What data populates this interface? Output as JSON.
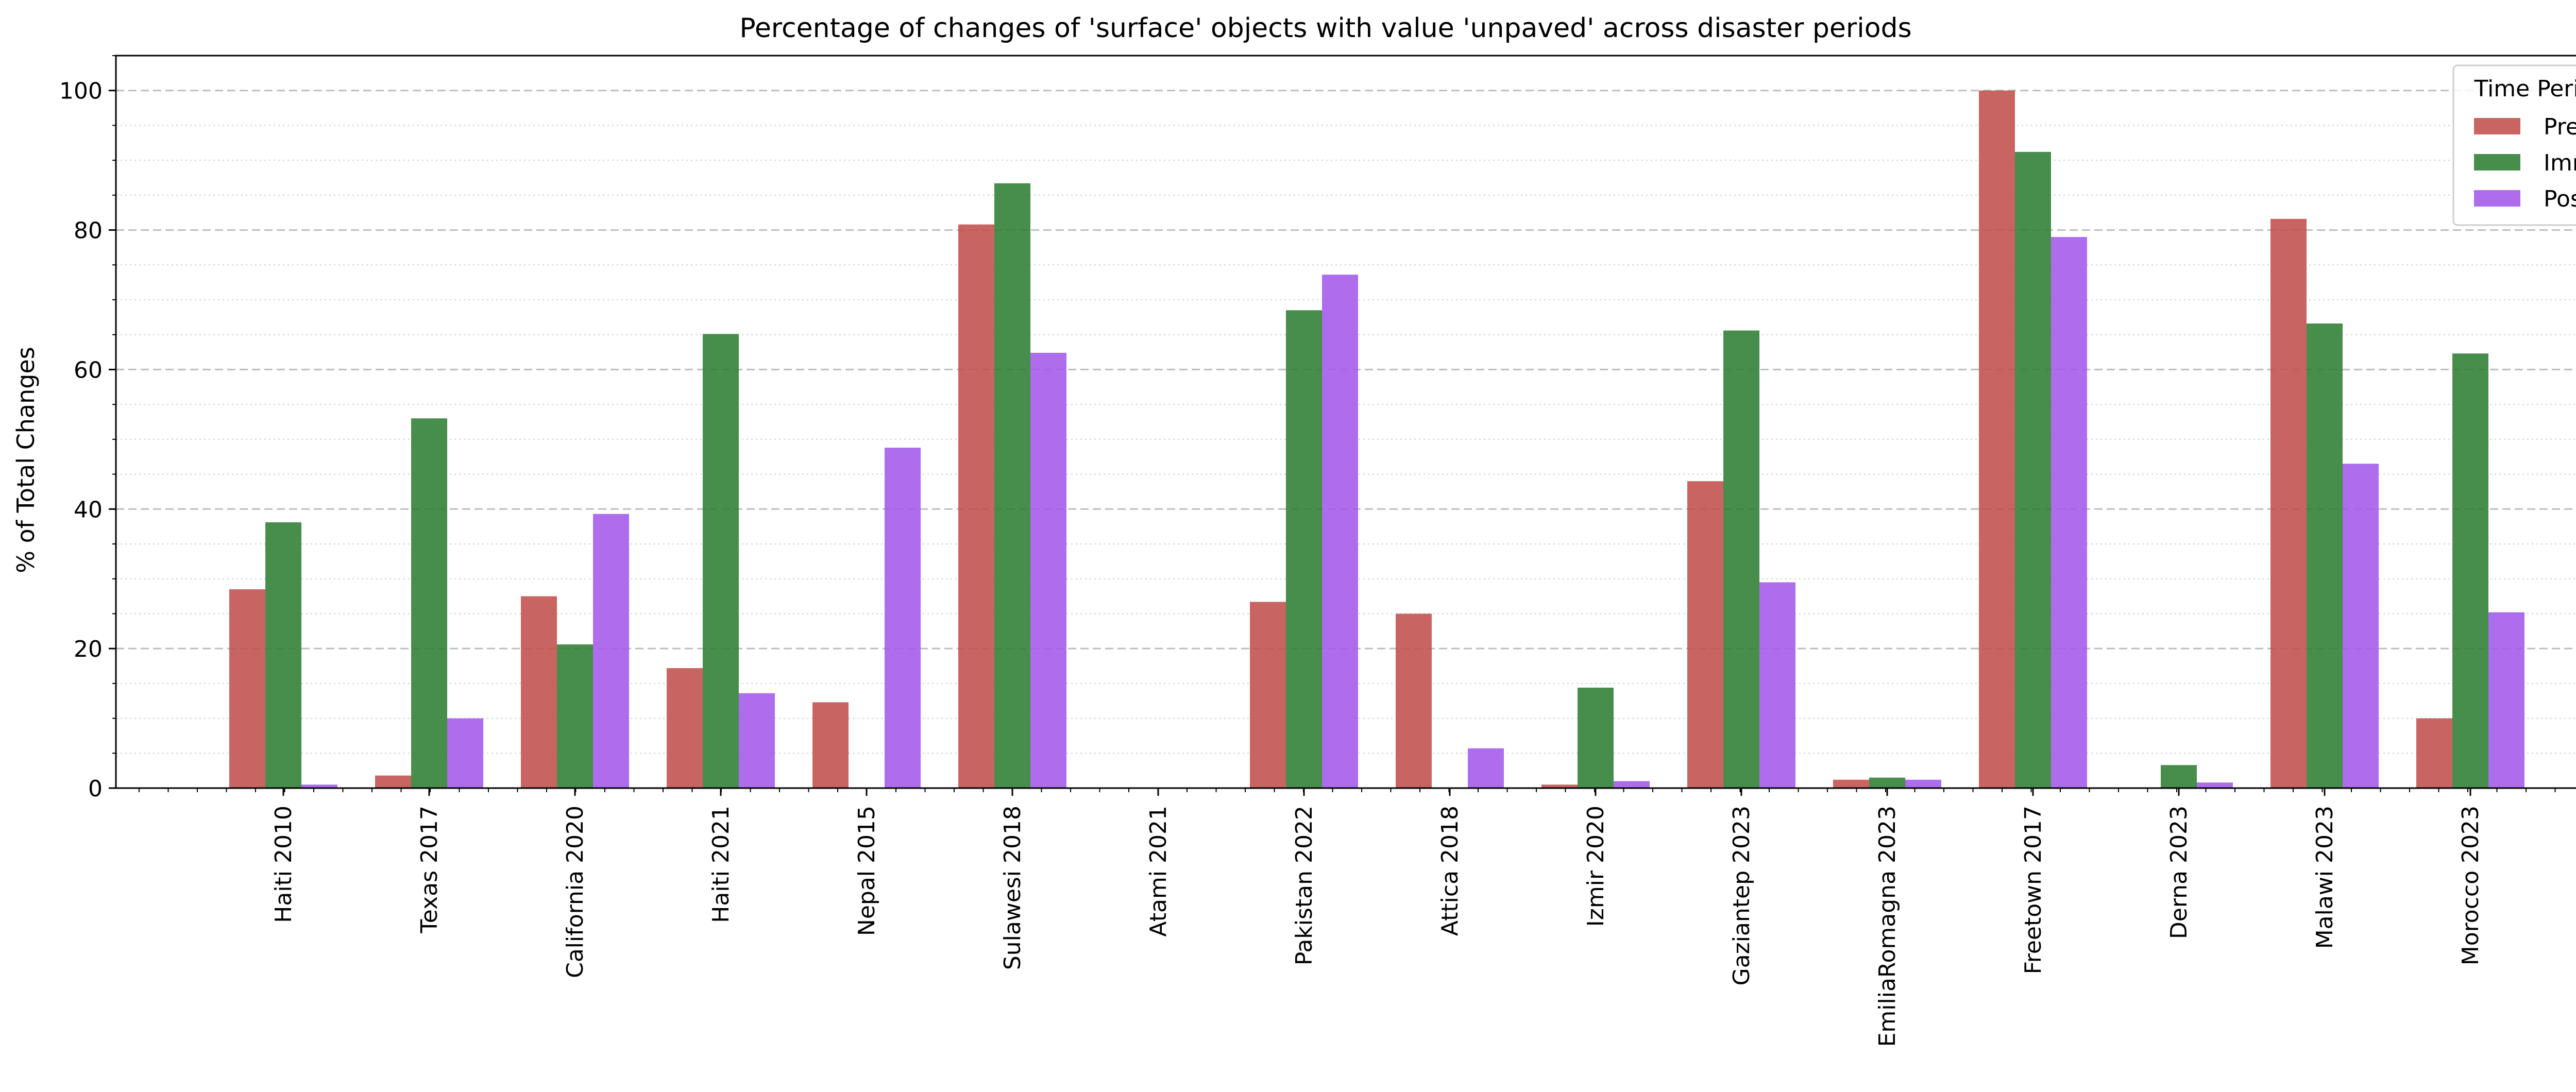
{
  "chart_data": {
    "type": "bar",
    "title": "Percentage of changes of 'surface' objects with value 'unpaved' across disaster periods",
    "xlabel": "",
    "ylabel": "% of Total Changes",
    "ylim": [
      0,
      105
    ],
    "yticks": [
      0,
      20,
      40,
      60,
      80,
      100
    ],
    "grid": "major dashed, minor dotted (y-axis)",
    "categories": [
      "Haiti 2010",
      "Texas 2017",
      "California 2020",
      "Haiti 2021",
      "Nepal 2015",
      "Sulawesi 2018",
      "Atami 2021",
      "Pakistan 2022",
      "Attica 2018",
      "Izmir 2020",
      "Gaziantep 2023",
      "EmiliaRomagna 2023",
      "Freetown 2017",
      "Derna 2023",
      "Malawi 2023",
      "Morocco 2023"
    ],
    "series": [
      {
        "name": "Pre",
        "color": "#c0504d",
        "values": [
          28.5,
          1.8,
          27.5,
          17.2,
          12.3,
          80.8,
          0,
          26.7,
          25.0,
          0.5,
          44.0,
          1.2,
          100.0,
          0,
          81.6,
          10.0
        ]
      },
      {
        "name": "Imm",
        "color": "#2e7d32",
        "values": [
          38.1,
          53.0,
          20.6,
          65.1,
          0,
          86.7,
          0,
          68.5,
          0,
          14.4,
          65.6,
          1.5,
          91.2,
          3.3,
          66.6,
          62.3
        ]
      },
      {
        "name": "Post",
        "color": "#a259ea",
        "values": [
          0.5,
          10.0,
          39.3,
          13.6,
          48.8,
          62.4,
          0,
          73.6,
          5.7,
          1.0,
          29.5,
          1.2,
          79.0,
          0.8,
          46.5,
          25.2
        ]
      }
    ],
    "legend": {
      "title": "Time Period",
      "placement": "top-right"
    }
  }
}
